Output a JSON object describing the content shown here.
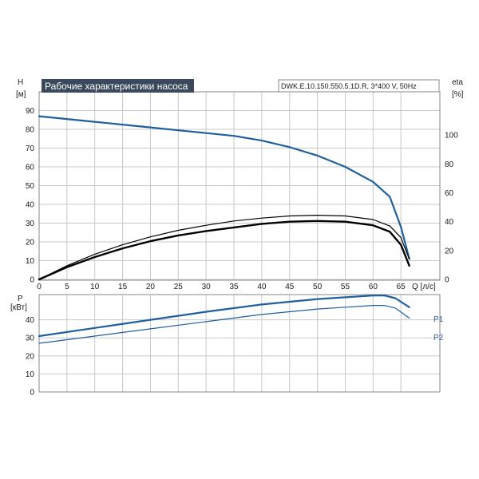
{
  "colors": {
    "blue": "#1f5f9e",
    "black": "#000000",
    "grid": "#c8c8c8",
    "title_bg": "#3a4a5c"
  },
  "chart_data": [
    {
      "type": "line",
      "title": "Рабочие характеристики насоса",
      "model_label": "DWK.E.10.150.550.5.1D.R, 3*400 V, 50Hz",
      "xlabel": "Q [л/с]",
      "ylabel_name": "H",
      "ylabel_unit": "[м]",
      "y2label_name": "eta",
      "y2label_unit": "[%]",
      "xlim": [
        0,
        72
      ],
      "ylim": [
        0,
        100
      ],
      "y2lim": [
        0,
        130
      ],
      "x_ticks": [
        0,
        5,
        10,
        15,
        20,
        25,
        30,
        35,
        40,
        45,
        50,
        55,
        60,
        65
      ],
      "y_ticks": [
        0,
        10,
        20,
        30,
        40,
        50,
        60,
        70,
        80,
        90
      ],
      "y2_ticks": [
        0,
        20,
        40,
        60,
        80,
        100
      ],
      "grid": true,
      "series": [
        {
          "axis": "left",
          "color": "blue",
          "width": 2.2,
          "x": [
            0,
            5,
            10,
            15,
            20,
            25,
            30,
            35,
            40,
            45,
            50,
            55,
            60,
            63,
            65,
            66.5
          ],
          "y": [
            87,
            85.5,
            84,
            82.5,
            81,
            79.5,
            78,
            76.5,
            74,
            70.5,
            66,
            60,
            52,
            44,
            28,
            11
          ]
        },
        {
          "axis": "right",
          "color": "black",
          "width": 1.2,
          "x": [
            0,
            5,
            10,
            15,
            20,
            25,
            30,
            35,
            40,
            45,
            50,
            55,
            60,
            63,
            65,
            66.5
          ],
          "y": [
            0,
            9.5,
            17.5,
            24,
            29.5,
            34,
            37.5,
            40.5,
            42.5,
            44,
            44.5,
            44,
            41.5,
            37,
            29,
            14
          ]
        },
        {
          "axis": "right",
          "color": "black",
          "width": 2.4,
          "x": [
            0,
            5,
            10,
            15,
            20,
            25,
            30,
            35,
            40,
            45,
            50,
            55,
            60,
            63,
            65,
            66.5
          ],
          "y": [
            0,
            8.5,
            15.5,
            21.5,
            26.5,
            30.5,
            33.5,
            36,
            38.5,
            40,
            40.5,
            40,
            37.5,
            33,
            24,
            9.5
          ]
        }
      ]
    },
    {
      "type": "line",
      "ylabel_name": "P",
      "ylabel_unit": "[кВт]",
      "xlim": [
        0,
        72
      ],
      "ylim": [
        0,
        54
      ],
      "y_ticks": [
        0,
        10,
        20,
        30,
        40
      ],
      "x_ticks": [
        0,
        5,
        10,
        15,
        20,
        25,
        30,
        35,
        40,
        45,
        50,
        55,
        60,
        65
      ],
      "grid": true,
      "series": [
        {
          "name": "P1",
          "color": "blue",
          "width": 2.2,
          "x": [
            0,
            10,
            20,
            30,
            40,
            50,
            55,
            60,
            62,
            64,
            66.5
          ],
          "y": [
            31,
            35.5,
            40,
            44.5,
            48.5,
            51.5,
            52.5,
            53.5,
            53.5,
            52,
            47
          ]
        },
        {
          "name": "P2",
          "color": "blue",
          "width": 1.2,
          "x": [
            0,
            10,
            20,
            30,
            40,
            50,
            55,
            60,
            62,
            64,
            66.5
          ],
          "y": [
            27,
            31,
            35,
            39,
            43,
            46,
            47,
            48,
            48,
            46.5,
            41
          ]
        }
      ]
    }
  ]
}
